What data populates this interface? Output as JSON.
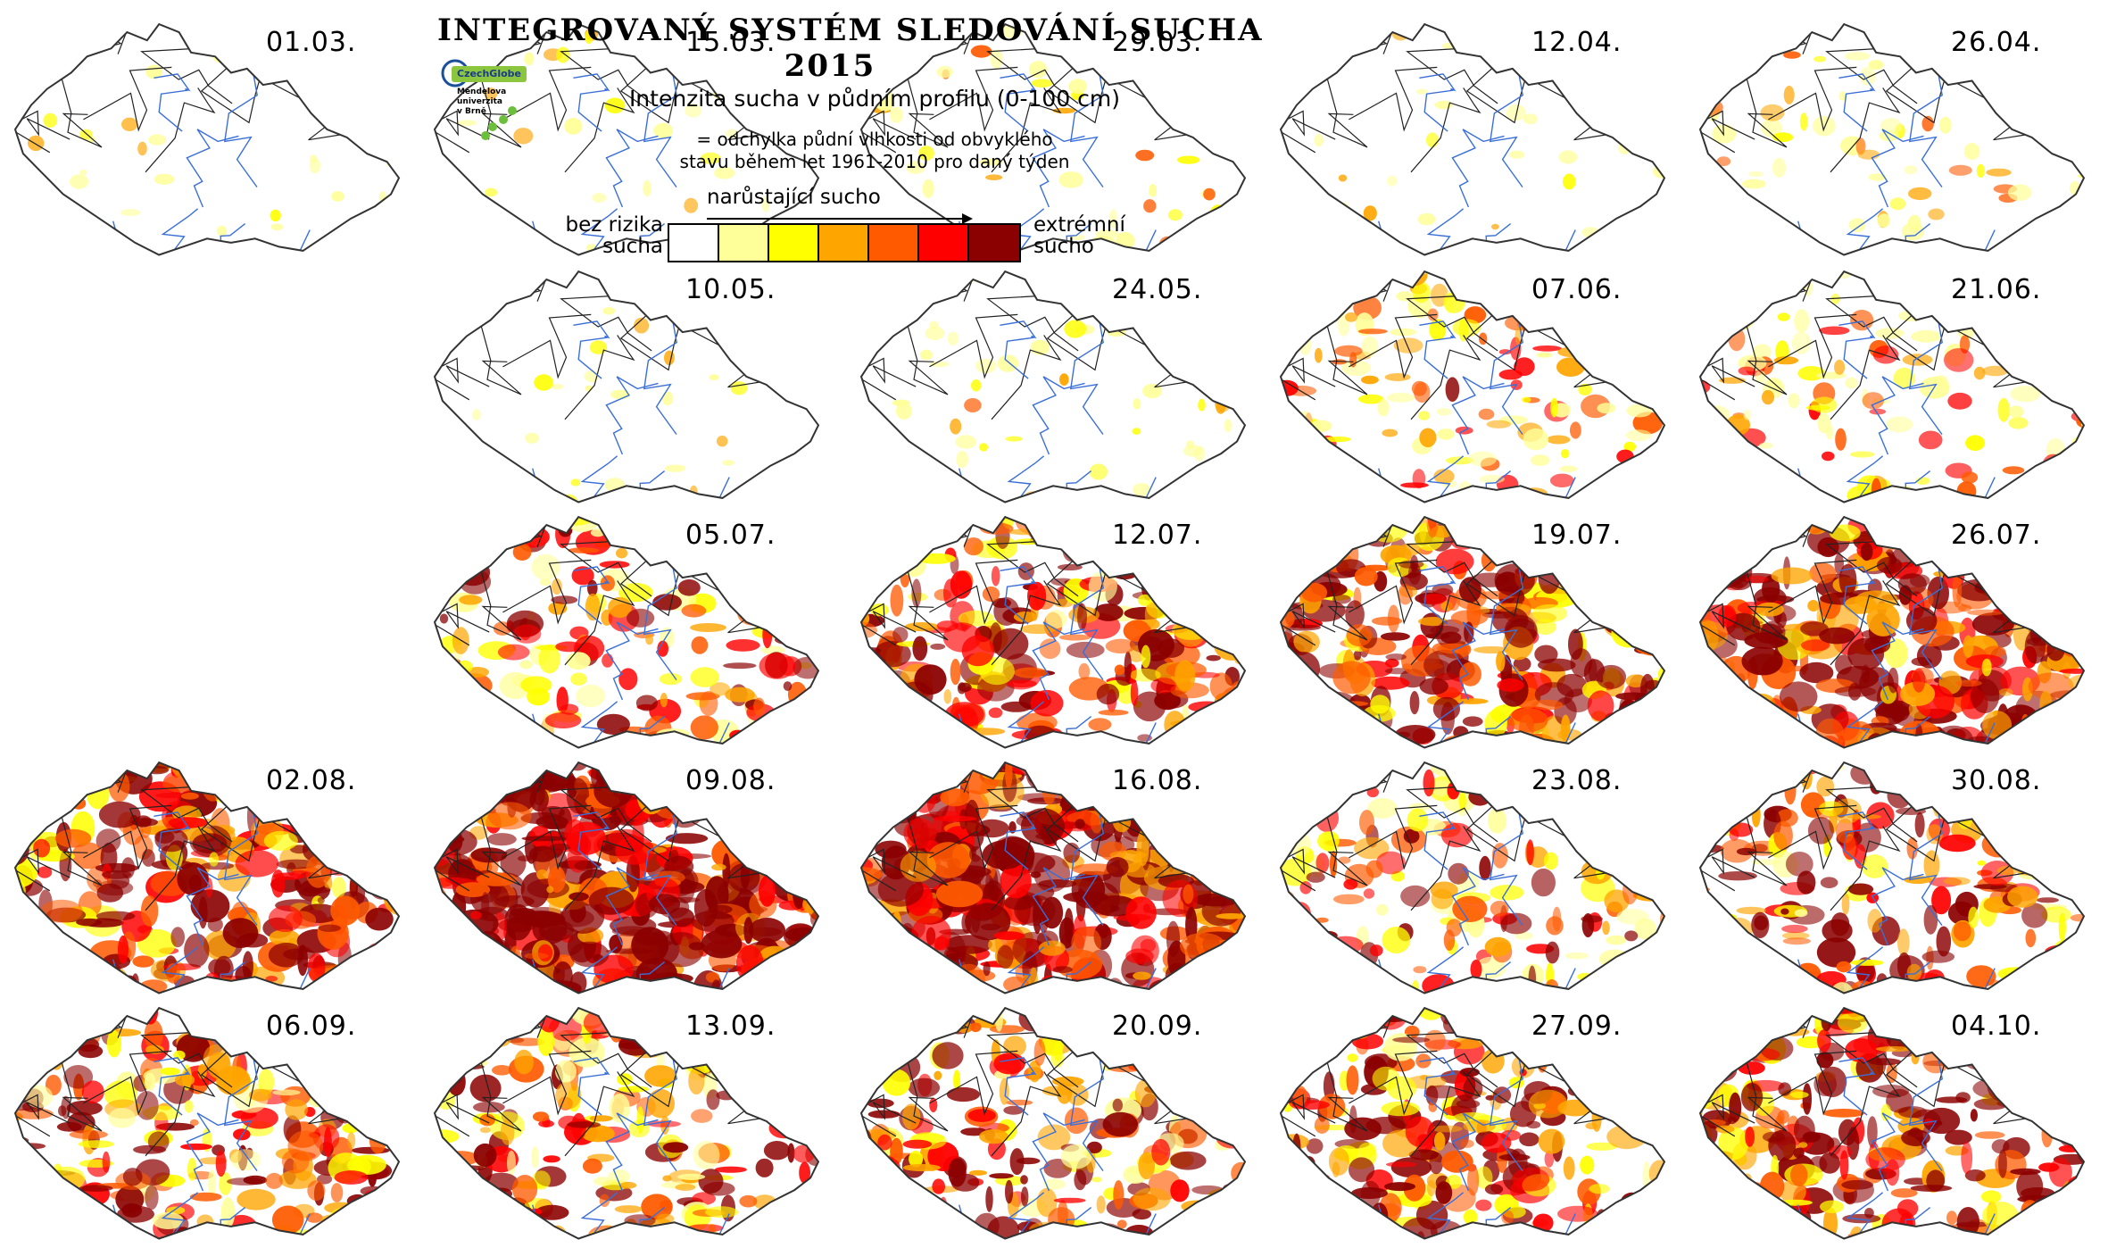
{
  "header": {
    "title": "INTEGROVANÝ SYSTÉM SLEDOVÁNÍ SUCHA",
    "year": "2015",
    "subtitle": "Intenzita sucha v půdním profilu (0-100 cm)",
    "note_line1": "= odchylka půdní vlhkosti od obvyklého",
    "note_line2": "stavu během let 1961-2010 pro daný týden",
    "logo_czechglobe": "CzechGlobe",
    "logo_mendel_1": "Mendelova",
    "logo_mendel_2": "univerzita",
    "logo_mendel_3": "v Brně"
  },
  "legend": {
    "direction_label": "narůstající sucho",
    "left_label_1": "bez rizika",
    "left_label_2": "sucha",
    "right_label_1": "extrémní",
    "right_label_2": "sucho",
    "colors": [
      "#ffffff",
      "#ffff99",
      "#ffff00",
      "#ffa500",
      "#ff5a00",
      "#ff0000",
      "#8b0000"
    ]
  },
  "map_colors": {
    "border": "#333333",
    "rivers": "#3a6fd8",
    "districts": "#222222"
  },
  "panels": [
    {
      "date": "01.03.",
      "intensity": 0.08
    },
    {
      "date": "15.03.",
      "intensity": 0.1
    },
    {
      "date": "29.03.",
      "intensity": 0.22
    },
    {
      "date": "12.04.",
      "intensity": 0.09
    },
    {
      "date": "26.04.",
      "intensity": 0.24
    },
    {
      "date": "10.05.",
      "intensity": 0.1
    },
    {
      "date": "24.05.",
      "intensity": 0.15
    },
    {
      "date": "07.06.",
      "intensity": 0.42
    },
    {
      "date": "21.06.",
      "intensity": 0.4
    },
    {
      "date": "05.07.",
      "intensity": 0.6
    },
    {
      "date": "12.07.",
      "intensity": 0.72
    },
    {
      "date": "19.07.",
      "intensity": 0.78
    },
    {
      "date": "26.07.",
      "intensity": 0.86
    },
    {
      "date": "02.08.",
      "intensity": 0.8
    },
    {
      "date": "09.08.",
      "intensity": 0.95
    },
    {
      "date": "16.08.",
      "intensity": 0.93
    },
    {
      "date": "23.08.",
      "intensity": 0.55
    },
    {
      "date": "30.08.",
      "intensity": 0.66
    },
    {
      "date": "06.09.",
      "intensity": 0.68
    },
    {
      "date": "13.09.",
      "intensity": 0.62
    },
    {
      "date": "20.09.",
      "intensity": 0.64
    },
    {
      "date": "27.09.",
      "intensity": 0.72
    },
    {
      "date": "04.10.",
      "intensity": 0.76
    }
  ]
}
